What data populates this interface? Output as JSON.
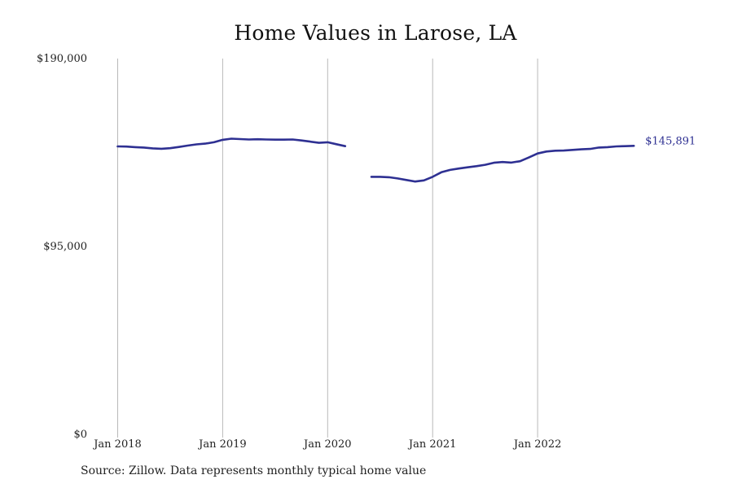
{
  "chart_data": {
    "type": "line",
    "title": "Home Values in Larose, LA",
    "xlabel": "",
    "ylabel": "",
    "ylim": [
      0,
      190000
    ],
    "y_ticks": [
      {
        "value": 0,
        "label": "$0"
      },
      {
        "value": 95000,
        "label": "$95,000"
      },
      {
        "value": 190000,
        "label": "$190,000"
      }
    ],
    "x_ticks": [
      {
        "value": "2018-01",
        "label": "Jan 2018"
      },
      {
        "value": "2019-01",
        "label": "Jan 2019"
      },
      {
        "value": "2020-01",
        "label": "Jan 2020"
      },
      {
        "value": "2021-01",
        "label": "Jan 2021"
      },
      {
        "value": "2022-01",
        "label": "Jan 2022"
      }
    ],
    "x_range": [
      "2018-01",
      "2022-12"
    ],
    "grid": "vertical gridlines at x ticks",
    "line_color": "#2e3092",
    "end_label": "$145,891",
    "series": [
      {
        "segments": [
          [
            [
              "2018-01",
              145600
            ],
            [
              "2018-02",
              145500
            ],
            [
              "2018-03",
              145200
            ],
            [
              "2018-04",
              145000
            ],
            [
              "2018-05",
              144600
            ],
            [
              "2018-06",
              144400
            ],
            [
              "2018-07",
              144700
            ],
            [
              "2018-08",
              145300
            ],
            [
              "2018-09",
              146000
            ],
            [
              "2018-10",
              146600
            ],
            [
              "2018-11",
              147000
            ],
            [
              "2018-12",
              147700
            ],
            [
              "2019-01",
              148900
            ],
            [
              "2019-02",
              149500
            ],
            [
              "2019-03",
              149300
            ],
            [
              "2019-04",
              149100
            ],
            [
              "2019-05",
              149200
            ],
            [
              "2019-06",
              149100
            ],
            [
              "2019-07",
              149000
            ],
            [
              "2019-08",
              149000
            ],
            [
              "2019-09",
              149100
            ],
            [
              "2019-10",
              148600
            ],
            [
              "2019-11",
              148000
            ],
            [
              "2019-12",
              147400
            ],
            [
              "2020-01",
              147700
            ],
            [
              "2020-02",
              146700
            ],
            [
              "2020-03",
              145700
            ]
          ],
          [
            [
              "2020-06",
              130200
            ],
            [
              "2020-07",
              130200
            ],
            [
              "2020-08",
              130000
            ],
            [
              "2020-09",
              129400
            ],
            [
              "2020-10",
              128600
            ],
            [
              "2020-11",
              127800
            ],
            [
              "2020-12",
              128400
            ],
            [
              "2021-01",
              130200
            ],
            [
              "2021-02",
              132500
            ],
            [
              "2021-03",
              133700
            ],
            [
              "2021-04",
              134400
            ],
            [
              "2021-05",
              135000
            ],
            [
              "2021-06",
              135600
            ],
            [
              "2021-07",
              136300
            ],
            [
              "2021-08",
              137300
            ],
            [
              "2021-09",
              137700
            ],
            [
              "2021-10",
              137400
            ],
            [
              "2021-11",
              138100
            ],
            [
              "2021-12",
              140000
            ],
            [
              "2022-01",
              142000
            ],
            [
              "2022-02",
              143000
            ],
            [
              "2022-03",
              143400
            ],
            [
              "2022-04",
              143500
            ],
            [
              "2022-05",
              143800
            ],
            [
              "2022-06",
              144100
            ],
            [
              "2022-07",
              144300
            ],
            [
              "2022-08",
              145000
            ],
            [
              "2022-09",
              145200
            ],
            [
              "2022-10",
              145600
            ],
            [
              "2022-11",
              145700
            ],
            [
              "2022-12",
              145891
            ]
          ]
        ]
      }
    ]
  },
  "footer": {
    "source": "Source: Zillow. Data represents monthly typical home value"
  }
}
